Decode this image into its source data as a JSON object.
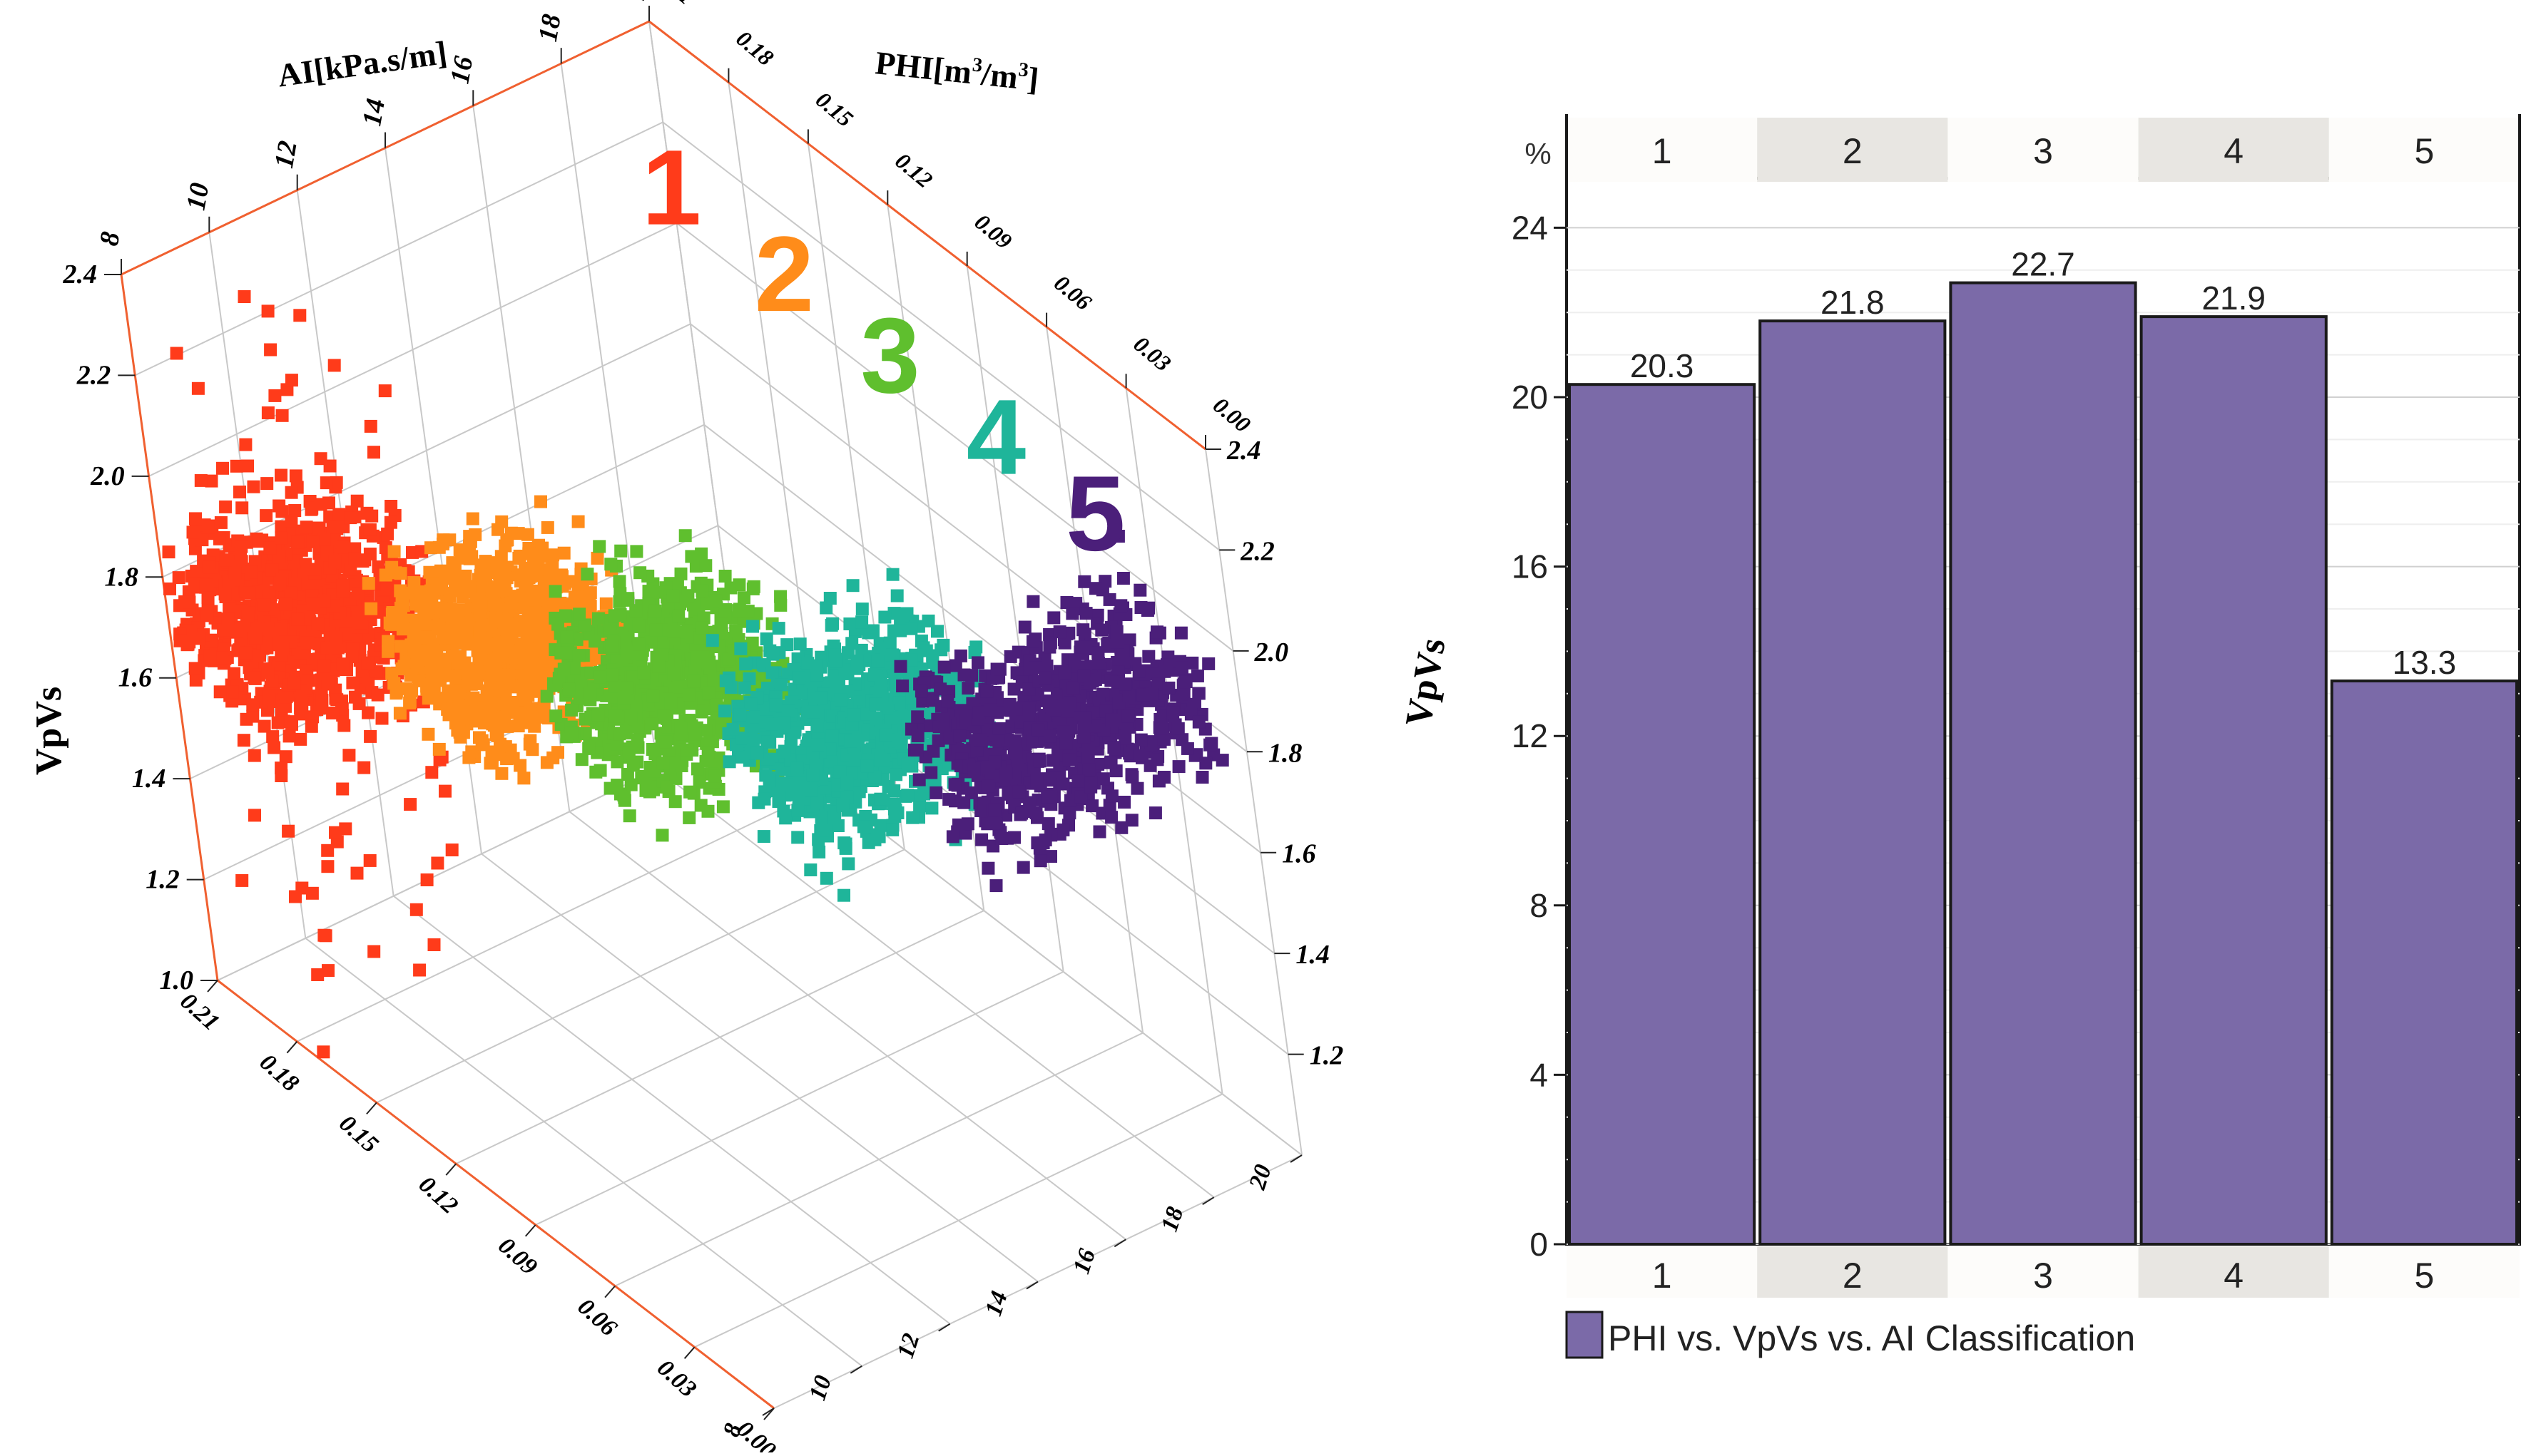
{
  "colors": {
    "axis_frame": "#f06030",
    "grid": "#c8c8c8",
    "bar_fill": "#7b6aa8",
    "bar_stroke": "#1a1a1a",
    "header_alt": "#e8e6e2",
    "cluster_1": "#ff3b1a",
    "cluster_2": "#ff8c1a",
    "cluster_3": "#5fbf2e",
    "cluster_4": "#1fb59a",
    "cluster_5": "#4b1f7a"
  },
  "chart_data": [
    {
      "type": "scatter",
      "projection": "3d",
      "axes": {
        "ai": {
          "label": "AI[kPa.s/m]",
          "ticks": [
            "8",
            "10",
            "12",
            "14",
            "16",
            "18",
            "20"
          ],
          "range": [
            8,
            20
          ]
        },
        "phi": {
          "label_prefix": "PHI[m",
          "label_mid": "/m",
          "label_suffix": "]",
          "label_sup": "3",
          "ticks": [
            "0.21",
            "0.18",
            "0.15",
            "0.12",
            "0.09",
            "0.06",
            "0.03",
            "0.00"
          ],
          "range": [
            0.0,
            0.21
          ]
        },
        "vpvs": {
          "label": "VpVs",
          "ticks": [
            "1.0",
            "1.2",
            "1.4",
            "1.6",
            "1.8",
            "2.0",
            "2.2",
            "2.4"
          ],
          "right_ticks": [
            "1.2",
            "1.4",
            "1.6",
            "1.8",
            "2.0",
            "2.2",
            "2.4"
          ],
          "range": [
            1.0,
            2.4
          ]
        }
      },
      "clusters": [
        {
          "label": "1",
          "color": "#ff3b1a",
          "phi_range": [
            0.165,
            0.21
          ],
          "ai_range": [
            8,
            11.5
          ],
          "vpvs_center": 1.75
        },
        {
          "label": "2",
          "color": "#ff8c1a",
          "phi_range": [
            0.125,
            0.165
          ],
          "ai_range": [
            10,
            13.5
          ],
          "vpvs_center": 1.78
        },
        {
          "label": "3",
          "color": "#5fbf2e",
          "phi_range": [
            0.085,
            0.125
          ],
          "ai_range": [
            11.5,
            15
          ],
          "vpvs_center": 1.8
        },
        {
          "label": "4",
          "color": "#1fb59a",
          "phi_range": [
            0.045,
            0.085
          ],
          "ai_range": [
            13,
            17
          ],
          "vpvs_center": 1.8
        },
        {
          "label": "5",
          "color": "#4b1f7a",
          "phi_range": [
            0.01,
            0.045
          ],
          "ai_range": [
            15,
            20
          ],
          "vpvs_center": 1.85
        }
      ],
      "grid": true
    },
    {
      "type": "bar",
      "ylabel": "%",
      "categories": [
        "1",
        "2",
        "3",
        "4",
        "5"
      ],
      "values": [
        20.3,
        21.8,
        22.7,
        21.9,
        13.3
      ],
      "value_labels": [
        "20.3",
        "21.8",
        "22.7",
        "21.9",
        "13.3"
      ],
      "yticks": [
        "0",
        "4",
        "8",
        "12",
        "16",
        "20",
        "24"
      ],
      "ylim": [
        0,
        25
      ],
      "legend": "PHI vs. VpVs vs. AI Classification",
      "legend_position": "bottom-left",
      "grid": true
    }
  ]
}
